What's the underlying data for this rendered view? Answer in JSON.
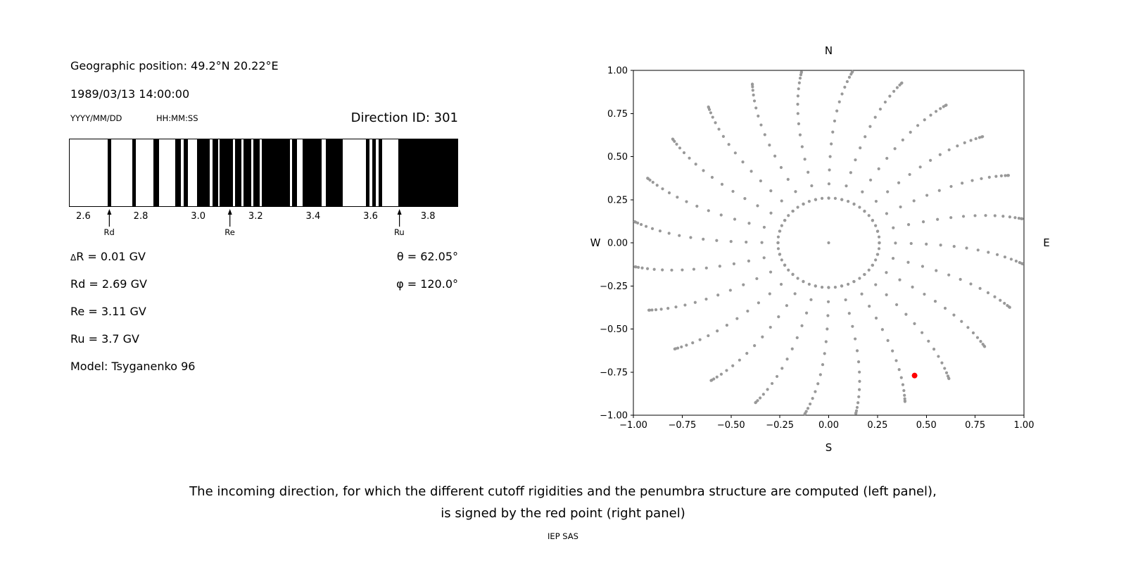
{
  "left_panel": {
    "geographic_position": "Geographic position: 49.2°N 20.22°E",
    "datetime": "1989/03/13 14:00:00",
    "date_format_label": "YYYY/MM/DD",
    "time_format_label": "HH:MM:SS",
    "direction_id": "Direction ID: 301",
    "params_left": [
      "ΔR = 0.01 GV",
      "Rd = 2.69 GV",
      "Re = 3.11 GV",
      "Ru = 3.7 GV",
      "Model: Tsyganenko 96"
    ],
    "params_right": [
      "θ = 62.05°",
      "φ = 120.0°"
    ]
  },
  "caption": {
    "line1": "The incoming direction, for which the different cutoff rigidities and the penumbra structure are computed (left panel),",
    "line2": "is signed by the red point (right panel)",
    "credit": "IEP SAS"
  },
  "chart_data": [
    {
      "id": "penumbra-spectrum",
      "type": "barcode",
      "x_range": [
        2.55,
        3.905
      ],
      "x_tick_labels": [
        "2.6",
        "2.8",
        "3.0",
        "3.2",
        "3.4",
        "3.6",
        "3.8"
      ],
      "x_tick_values": [
        2.6,
        2.8,
        3.0,
        3.2,
        3.4,
        3.6,
        3.8
      ],
      "bar_color": "#000000",
      "background_color": "#ffffff",
      "black_intervals_gv": [
        [
          2.682,
          2.696
        ],
        [
          2.768,
          2.782
        ],
        [
          2.842,
          2.862
        ],
        [
          2.92,
          2.938
        ],
        [
          2.948,
          2.964
        ],
        [
          2.994,
          3.04
        ],
        [
          3.048,
          3.068
        ],
        [
          3.075,
          3.12
        ],
        [
          3.127,
          3.15
        ],
        [
          3.158,
          3.185
        ],
        [
          3.192,
          3.215
        ],
        [
          3.222,
          3.32
        ],
        [
          3.327,
          3.345
        ],
        [
          3.365,
          3.43
        ],
        [
          3.445,
          3.505
        ],
        [
          3.585,
          3.597
        ],
        [
          3.607,
          3.619
        ],
        [
          3.629,
          3.641
        ],
        [
          3.698,
          3.905
        ]
      ],
      "markers": [
        {
          "label": "Rd",
          "value_gv": 2.69
        },
        {
          "label": "Re",
          "value_gv": 3.11
        },
        {
          "label": "Ru",
          "value_gv": 3.7
        }
      ]
    },
    {
      "id": "incoming-directions",
      "type": "scatter",
      "x_range": [
        -1,
        1
      ],
      "y_range": [
        -1,
        1
      ],
      "x_ticks": [
        -1,
        -0.75,
        -0.5,
        -0.25,
        0,
        0.25,
        0.5,
        0.75,
        1
      ],
      "y_ticks": [
        -1,
        -0.75,
        -0.5,
        -0.25,
        0,
        0.25,
        0.5,
        0.75,
        1
      ],
      "tick_decimals": 2,
      "compass_labels": {
        "top": "N",
        "bottom": "S",
        "left": "W",
        "right": "E"
      },
      "grid_dot_color": "#999999",
      "direction_grid": {
        "azimuth_count": 24,
        "azimuth_step_deg": 15,
        "zenith_min_deg": 15,
        "zenith_max_deg": 90,
        "zenith_step_deg": 5,
        "radius_rule": "sin(zenith)",
        "center_point": true,
        "inner_ring": {
          "radius": 0.26,
          "count": 48
        },
        "twist_deg": 7
      },
      "red_point": {
        "x": 0.44,
        "y": -0.77,
        "color": "#ff0000",
        "theta_deg": 62.05,
        "phi_deg": 120.0
      }
    }
  ]
}
